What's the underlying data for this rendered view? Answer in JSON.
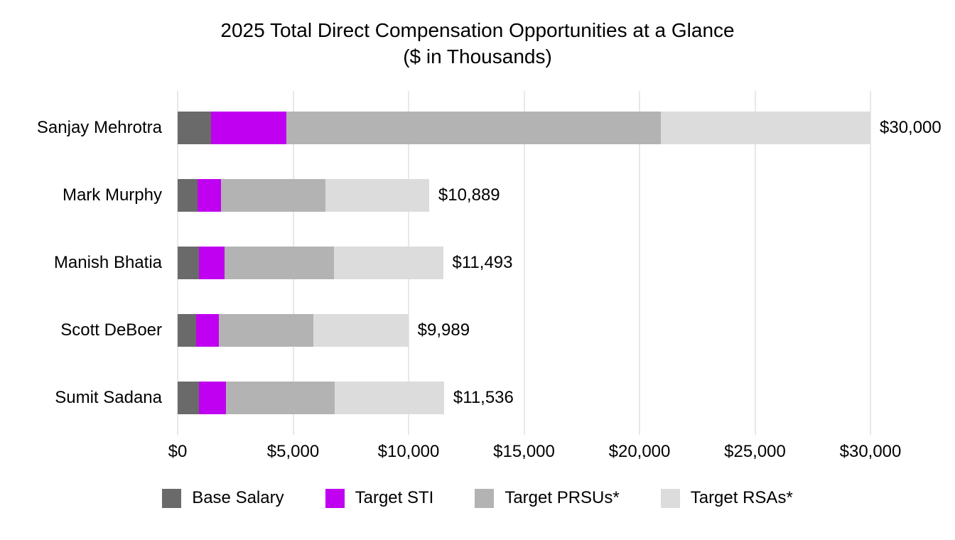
{
  "title": {
    "line1": "2025 Total Direct Compensation Opportunities at a Glance",
    "line2": "($ in Thousands)"
  },
  "chart_data": {
    "type": "bar",
    "orientation": "horizontal",
    "stacked": true,
    "title": "2025 Total Direct Compensation Opportunities at a Glance ($ in Thousands)",
    "xlabel": "",
    "ylabel": "",
    "xlim": [
      0,
      30000
    ],
    "grid": "vertical",
    "legend_position": "bottom",
    "categories": [
      "Sanjay Mehrotra",
      "Mark Murphy",
      "Manish Bhatia",
      "Scott DeBoer",
      "Sumit Sadana"
    ],
    "series": [
      {
        "name": "Base Salary",
        "color": "#6A6A6A",
        "values": [
          1450,
          860,
          930,
          810,
          910
        ]
      },
      {
        "name": "Target STI",
        "color": "#C000F0",
        "values": [
          3263,
          1025,
          1105,
          975,
          1180
        ]
      },
      {
        "name": "Target PRSUs*",
        "color": "#B3B3B3",
        "values": [
          16212,
          4502,
          4729,
          4102,
          4723
        ]
      },
      {
        "name": "Target RSAs*",
        "color": "#DCDCDC",
        "values": [
          9075,
          4502,
          4729,
          4102,
          4723
        ]
      }
    ],
    "totals": [
      30000,
      10889,
      11493,
      9989,
      11536
    ],
    "total_labels": [
      "$30,000",
      "$10,889",
      "$11,493",
      "$9,989",
      "$11,536"
    ],
    "x_ticks": [
      {
        "value": 0,
        "label": "$0"
      },
      {
        "value": 5000,
        "label": "$5,000"
      },
      {
        "value": 10000,
        "label": "$10,000"
      },
      {
        "value": 15000,
        "label": "$15,000"
      },
      {
        "value": 20000,
        "label": "$20,000"
      },
      {
        "value": 25000,
        "label": "$25,000"
      },
      {
        "value": 30000,
        "label": "$30,000"
      }
    ],
    "colors": {
      "background": "#FFFFFF",
      "gridline": "#E8E8E8",
      "text": "#000000"
    }
  }
}
